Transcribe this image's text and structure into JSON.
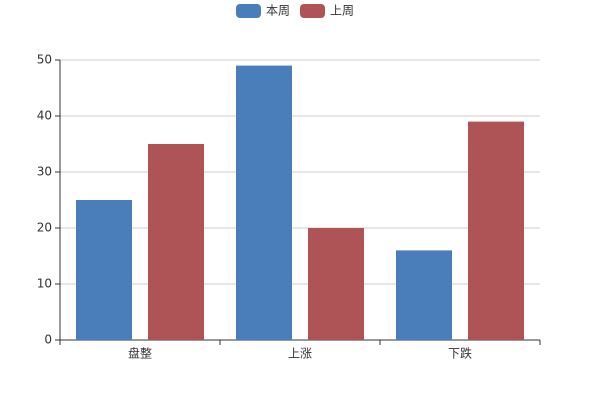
{
  "chart_data": {
    "type": "bar",
    "categories": [
      "盘整",
      "上涨",
      "下跌"
    ],
    "series": [
      {
        "name": "本周",
        "color": "#4a7ebb",
        "values": [
          25,
          49,
          16
        ]
      },
      {
        "name": "上周",
        "color": "#ae5457",
        "values": [
          35,
          20,
          39
        ]
      }
    ],
    "ylim": [
      0,
      50
    ],
    "yticks": [
      0,
      10,
      20,
      30,
      40,
      50
    ],
    "grid": true,
    "legend": "top"
  }
}
